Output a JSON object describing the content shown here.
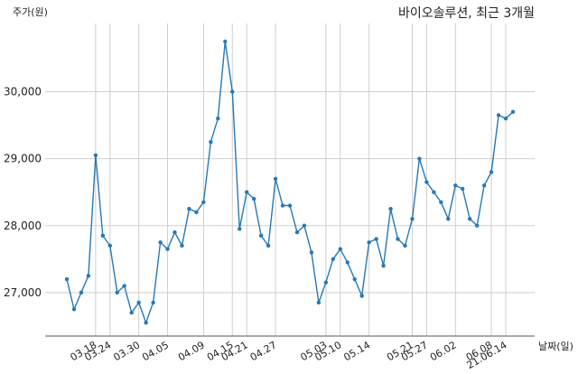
{
  "chart_data": {
    "type": "line",
    "title": "바이오솔루션, 최근 3개월",
    "xlabel": "날짜(일)",
    "ylabel": "주가(원)",
    "ylim": [
      26350,
      31020
    ],
    "yticks": [
      {
        "value": 27000,
        "label": "27,000"
      },
      {
        "value": 28000,
        "label": "28,000"
      },
      {
        "value": 29000,
        "label": "29,000"
      },
      {
        "value": 30000,
        "label": "30,000"
      }
    ],
    "xticks": [
      {
        "index": 4,
        "label": "03.18"
      },
      {
        "index": 6,
        "label": "03.24"
      },
      {
        "index": 10,
        "label": "03.30"
      },
      {
        "index": 14,
        "label": "04.05"
      },
      {
        "index": 19,
        "label": "04.09"
      },
      {
        "index": 23,
        "label": "04.15"
      },
      {
        "index": 25,
        "label": "04.21"
      },
      {
        "index": 29,
        "label": "04.27"
      },
      {
        "index": 36,
        "label": "05.03"
      },
      {
        "index": 38,
        "label": "05.10"
      },
      {
        "index": 42,
        "label": "05.14"
      },
      {
        "index": 48,
        "label": "05.21"
      },
      {
        "index": 50,
        "label": "05.27"
      },
      {
        "index": 54,
        "label": "06.02"
      },
      {
        "index": 59,
        "label": "06.08"
      },
      {
        "index": 61,
        "label": "21.06.14"
      }
    ],
    "grid": true,
    "color": "#2878b5",
    "series": [
      {
        "values": [
          27200,
          26750,
          27000,
          27250,
          29050,
          27850,
          27700,
          27000,
          27100,
          26700,
          26850,
          26550,
          26850,
          27750,
          27650,
          27900,
          27700,
          28250,
          28200,
          28350,
          29250,
          29600,
          30750,
          30000,
          27950,
          28500,
          28400,
          27850,
          27700,
          28700,
          28300,
          28300,
          27900,
          28000,
          27600,
          26850,
          27150,
          27500,
          27650,
          27450,
          27200,
          26950,
          27750,
          27800,
          27400,
          28250,
          27800,
          27700,
          28100,
          29000,
          28650,
          28500,
          28350,
          28100,
          28600,
          28550,
          28100,
          28000,
          28600,
          28800,
          29650,
          29600,
          29700
        ]
      }
    ]
  }
}
